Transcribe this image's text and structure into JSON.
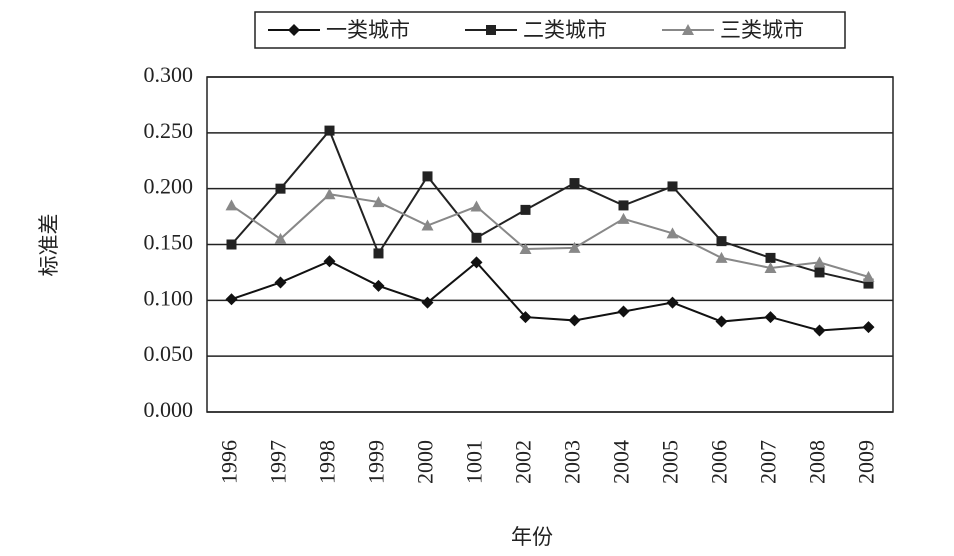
{
  "chart_data": {
    "type": "line",
    "xlabel": "年份",
    "ylabel": "标准差",
    "categories": [
      "1996",
      "1997",
      "1998",
      "1999",
      "2000",
      "1001",
      "2002",
      "2003",
      "2004",
      "2005",
      "2006",
      "2007",
      "2008",
      "2009"
    ],
    "series": [
      {
        "name": "一类城市",
        "color": "#111111",
        "marker": "diamond",
        "values": [
          0.101,
          0.116,
          0.135,
          0.113,
          0.098,
          0.134,
          0.085,
          0.082,
          0.09,
          0.098,
          0.081,
          0.085,
          0.073,
          0.076
        ]
      },
      {
        "name": "二类城市",
        "color": "#222222",
        "marker": "square",
        "values": [
          0.15,
          0.2,
          0.252,
          0.142,
          0.211,
          0.156,
          0.181,
          0.205,
          0.185,
          0.202,
          0.153,
          0.138,
          0.125,
          0.115
        ]
      },
      {
        "name": "三类城市",
        "color": "#888888",
        "marker": "triangle",
        "values": [
          0.185,
          0.155,
          0.195,
          0.188,
          0.167,
          0.184,
          0.146,
          0.147,
          0.173,
          0.16,
          0.138,
          0.129,
          0.134,
          0.121
        ]
      }
    ],
    "ylim": [
      0,
      0.3
    ],
    "yticks": [
      {
        "value": 0,
        "label": "0.000"
      },
      {
        "value": 0.05,
        "label": "0.050"
      },
      {
        "value": 0.1,
        "label": "0.100"
      },
      {
        "value": 0.15,
        "label": "0.150"
      },
      {
        "value": 0.2,
        "label": "0.200"
      },
      {
        "value": 0.25,
        "label": "0.250"
      },
      {
        "value": 0.3,
        "label": "0.300"
      }
    ],
    "grid": true,
    "legend": "top"
  }
}
